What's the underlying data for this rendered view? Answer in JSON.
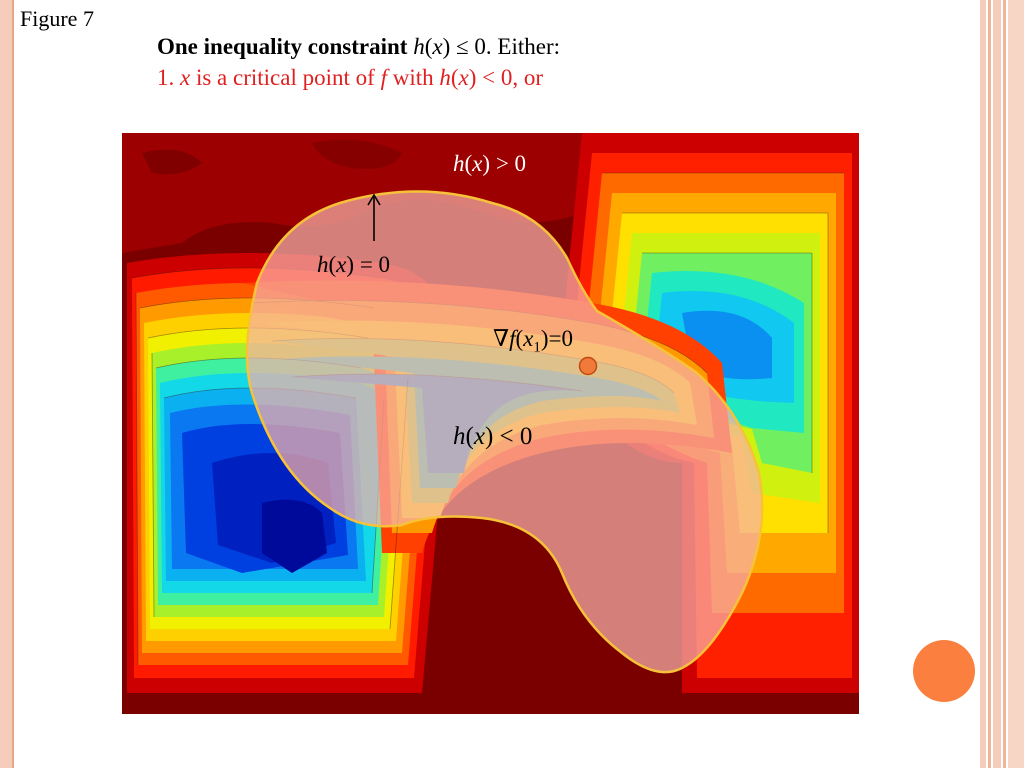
{
  "slide": {
    "figure_label": "Figure 7",
    "title_bold": "One inequality constraint",
    "title_h": "h",
    "title_x": "x",
    "title_rest": " ≤ 0.  Either:",
    "subtitle_num": "1. ",
    "subtitle_x": "x",
    "subtitle_mid": " is a critical point of ",
    "subtitle_f": "f",
    "subtitle_with": " with ",
    "subtitle_h": "h",
    "subtitle_x2": "x",
    "subtitle_end": " < 0, or"
  },
  "diagram": {
    "label_outside": {
      "h": "h",
      "x": "x",
      "rest": " > 0"
    },
    "label_boundary": {
      "h": "h",
      "x": "x",
      "rest": " = 0"
    },
    "label_gradient": {
      "nabla": "∇",
      "f": "f",
      "x": "x",
      "sub": "1",
      "rest": ")=0"
    },
    "label_inside": {
      "h": "h",
      "x": "x",
      "rest": " < 0"
    },
    "colors": {
      "background_dark_red": "#7a0000",
      "region_fill": "#f6b0a8",
      "region_border": "#f7c23a",
      "critical_point": "#f07a3a"
    }
  }
}
